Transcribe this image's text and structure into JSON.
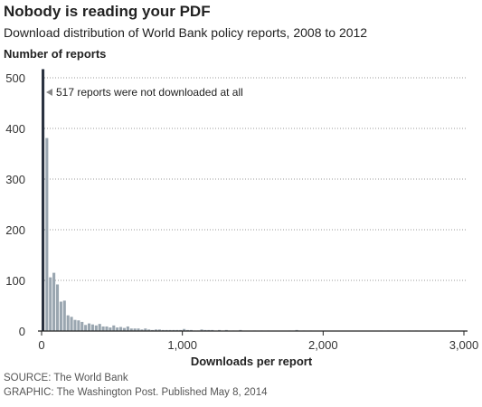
{
  "header": {
    "title": "Nobody is reading your PDF",
    "subtitle": "Download distribution of World Bank policy reports, 2008 to 2012",
    "y_axis_title": "Number of reports"
  },
  "footer": {
    "source": "SOURCE: The World Bank",
    "credit": "GRAPHIC: The Washington Post. Published May 8, 2014"
  },
  "colors": {
    "bar": "#9aa6b0",
    "highlight_bar": "#2a3240",
    "grid": "#9a9a9a",
    "axis": "#222222"
  },
  "chart_data": {
    "type": "bar",
    "title": "Nobody is reading your PDF",
    "subtitle": "Download distribution of World Bank policy reports, 2008 to 2012",
    "xlabel": "Downloads per report",
    "ylabel": "Number of reports",
    "xlim": [
      0,
      3000
    ],
    "ylim": [
      0,
      520
    ],
    "x_ticks": [
      "0",
      "1,000",
      "2,000",
      "3,000"
    ],
    "x_tick_values": [
      0,
      1000,
      2000,
      3000
    ],
    "y_ticks": [
      "0",
      "100",
      "200",
      "300",
      "400",
      "500"
    ],
    "y_tick_values": [
      0,
      100,
      200,
      300,
      400,
      500
    ],
    "grid": true,
    "bin_width": 25,
    "bin_starts": [
      0,
      25,
      50,
      75,
      100,
      125,
      150,
      175,
      200,
      225,
      250,
      275,
      300,
      325,
      350,
      375,
      400,
      425,
      450,
      475,
      500,
      525,
      550,
      575,
      600,
      625,
      650,
      675,
      700,
      725,
      750,
      775,
      800,
      825,
      850,
      875,
      900,
      925,
      950,
      975,
      1000,
      1025,
      1050,
      1075,
      1100,
      1125,
      1150,
      1175,
      1200,
      1250,
      1300,
      1350,
      1400,
      1500,
      1550,
      1600,
      1750,
      1800,
      1850,
      1900,
      2000,
      2400,
      2450,
      2600,
      2650
    ],
    "values": [
      517,
      381,
      106,
      115,
      92,
      58,
      60,
      31,
      28,
      22,
      21,
      18,
      12,
      15,
      13,
      11,
      14,
      9,
      9,
      7,
      11,
      7,
      8,
      6,
      9,
      5,
      5,
      5,
      3,
      5,
      3,
      2,
      3,
      3,
      2,
      2,
      2,
      2,
      2,
      2,
      4,
      2,
      2,
      1,
      1,
      3,
      2,
      2,
      2,
      2,
      2,
      1,
      2,
      1,
      1,
      1,
      1,
      2,
      1,
      1,
      1,
      1,
      1,
      1,
      1
    ],
    "highlight": {
      "bin_start": 0,
      "value": 517,
      "annotation": "517 reports were not downloaded at all"
    }
  }
}
